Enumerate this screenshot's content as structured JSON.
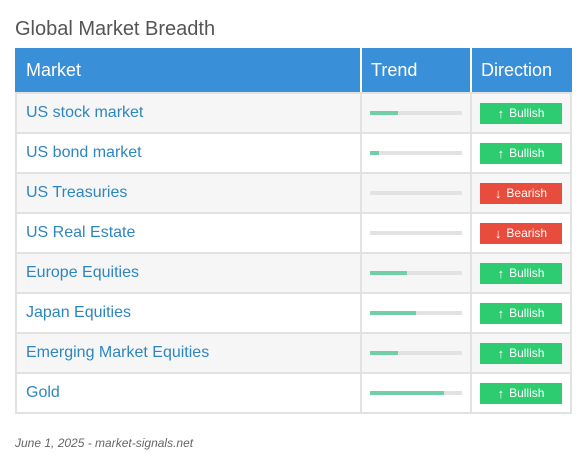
{
  "page": {
    "title": "Global Market Breadth"
  },
  "table": {
    "headers": {
      "market": "Market",
      "trend": "Trend",
      "direction": "Direction"
    },
    "rows": [
      {
        "market": "US stock market",
        "trend": 0.3,
        "direction": "Bullish",
        "arrow": "↑",
        "status_color": "#2ecc71"
      },
      {
        "market": "US bond market",
        "trend": 0.1,
        "direction": "Bullish",
        "arrow": "↑",
        "status_color": "#2ecc71"
      },
      {
        "market": "US Treasuries",
        "trend": 0.0,
        "direction": "Bearish",
        "arrow": "↓",
        "status_color": "#e74c3c"
      },
      {
        "market": "US Real Estate",
        "trend": 0.0,
        "direction": "Bearish",
        "arrow": "↓",
        "status_color": "#e74c3c"
      },
      {
        "market": "Europe Equities",
        "trend": 0.4,
        "direction": "Bullish",
        "arrow": "↑",
        "status_color": "#2ecc71"
      },
      {
        "market": "Japan Equities",
        "trend": 0.5,
        "direction": "Bullish",
        "arrow": "↑",
        "status_color": "#2ecc71"
      },
      {
        "market": "Emerging Market Equities",
        "trend": 0.3,
        "direction": "Bullish",
        "arrow": "↑",
        "status_color": "#2ecc71"
      },
      {
        "market": "Gold",
        "trend": 0.8,
        "direction": "Bullish",
        "arrow": "↑",
        "status_color": "#2ecc71"
      }
    ]
  },
  "footer": {
    "note": "June 1, 2025 - market-signals.net"
  },
  "colors": {
    "header_bg": "#3a8fd9",
    "market_link": "#2e86c1",
    "trend_fill": "#6fcfa6",
    "bullish": "#2ecc71",
    "bearish": "#e74c3c"
  }
}
